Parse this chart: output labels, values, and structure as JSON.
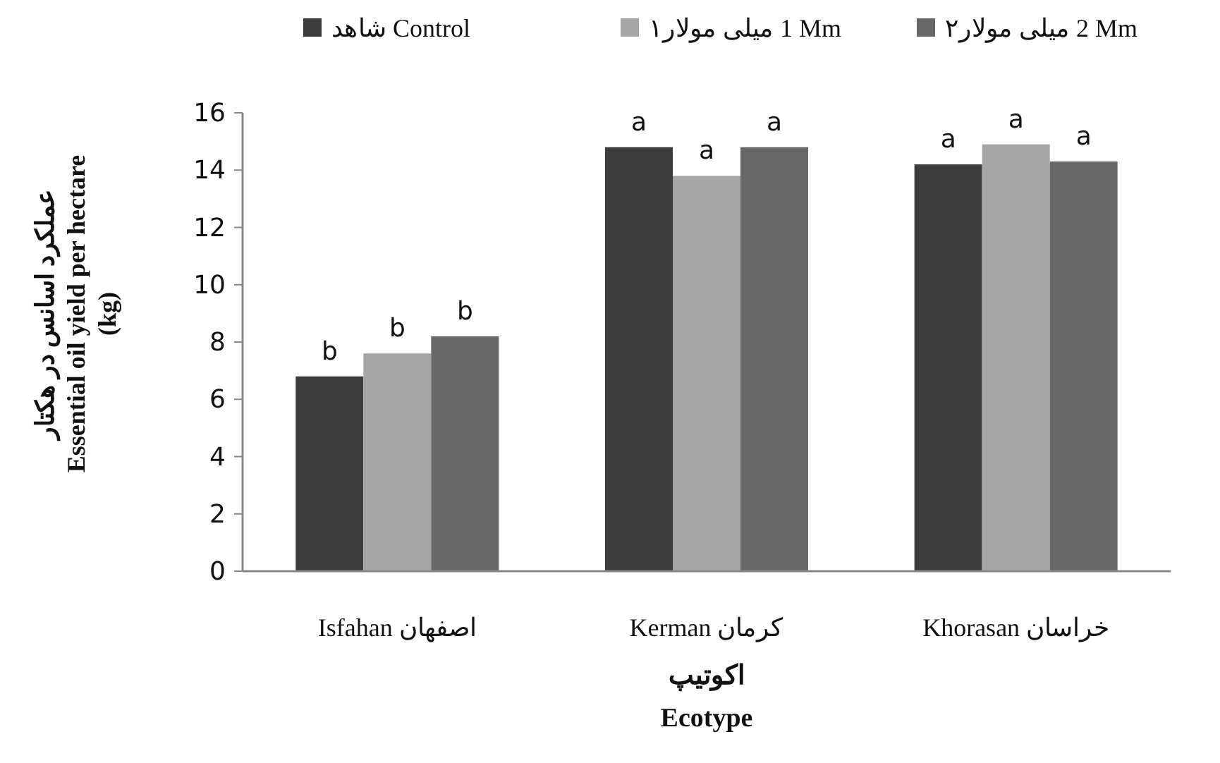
{
  "chart_data": {
    "type": "bar",
    "categories": [
      "Isfahan اصفهان",
      "Kerman کرمان",
      "Khorasan خراسان"
    ],
    "xlabel": "اکوتیپ\nEcotype",
    "ylabel": "عملکرد اسانس در هکتار\nEssential oil yield per hectare\n(kg)",
    "series": [
      {
        "name": "شاهد Control",
        "color": "#3c3c3c",
        "values": [
          6.8,
          14.8,
          14.2
        ],
        "value_labels": [
          "b",
          "a",
          "a"
        ]
      },
      {
        "name": "۱میلی مولار 1 Mm",
        "color": "#a6a6a6",
        "values": [
          7.6,
          13.8,
          14.9
        ],
        "value_labels": [
          "b",
          "a",
          "a"
        ]
      },
      {
        "name": "۲میلی مولار 2 Mm",
        "color": "#686868",
        "values": [
          8.2,
          14.8,
          14.3
        ],
        "value_labels": [
          "b",
          "a",
          "a"
        ]
      }
    ],
    "ylim": [
      0,
      16
    ],
    "yticks": [
      0,
      2,
      4,
      6,
      8,
      10,
      12,
      14,
      16
    ],
    "legend": "top",
    "grid": false
  }
}
